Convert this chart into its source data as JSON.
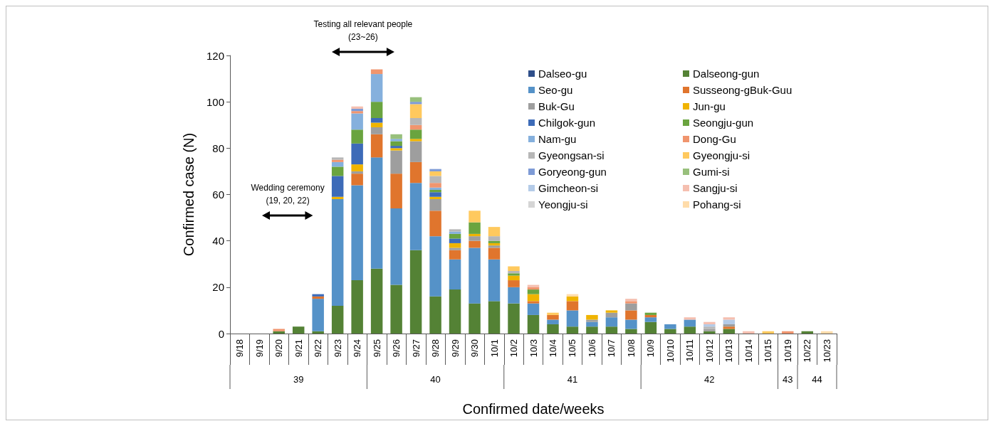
{
  "chart_data": {
    "type": "bar",
    "stacked": true,
    "xlabel": "Confirmed date/weeks",
    "ylabel": "Confirmed case (N)",
    "categories": [
      "9/18",
      "9/19",
      "9/20",
      "9/21",
      "9/22",
      "9/23",
      "9/24",
      "9/25",
      "9/26",
      "9/27",
      "9/28",
      "9/29",
      "9/30",
      "10/1",
      "10/2",
      "10/3",
      "10/4",
      "10/5",
      "10/6",
      "10/7",
      "10/8",
      "10/9",
      "10/10",
      "10/11",
      "10/12",
      "10/13",
      "10/14",
      "10/15",
      "10/19",
      "10/22",
      "10/23"
    ],
    "ylim": [
      0,
      120
    ],
    "yticks": [
      0,
      20,
      40,
      60,
      80,
      100,
      120
    ],
    "grid": false,
    "legend": "top right",
    "series": [
      {
        "name": "Dalseo-gu",
        "color": "#2f4f8a",
        "values": [
          null,
          null,
          null,
          null,
          null,
          null,
          null,
          null,
          null,
          null,
          null,
          null,
          null,
          null,
          null,
          null,
          null,
          null,
          null,
          null,
          null,
          null,
          null,
          null,
          null,
          null,
          null,
          null,
          null,
          null,
          null
        ]
      },
      {
        "name": "Dalseong-gun",
        "color": "#548235",
        "values": [
          null,
          null,
          1,
          3,
          1,
          12,
          23,
          28,
          21,
          36,
          16,
          19,
          13,
          14,
          13,
          8,
          4,
          3,
          3,
          3,
          2,
          5,
          2,
          3,
          1,
          2,
          null,
          null,
          null,
          1,
          null
        ]
      },
      {
        "name": "Seo-gu",
        "color": "#5592c8",
        "values": [
          null,
          null,
          null,
          null,
          14,
          46,
          41,
          48,
          33,
          29,
          26,
          13,
          24,
          18,
          7,
          5,
          2,
          7,
          2,
          4,
          4,
          2,
          2,
          3,
          null,
          null,
          null,
          null,
          null,
          null,
          null
        ]
      },
      {
        "name": "Susseong-gBuk-Guu",
        "color": "#e0752d",
        "values": [
          null,
          null,
          null,
          null,
          1,
          null,
          5,
          10,
          15,
          9,
          11,
          4,
          3,
          5,
          3,
          1,
          2,
          4,
          null,
          null,
          4,
          1,
          null,
          null,
          null,
          1,
          null,
          null,
          null,
          null,
          null
        ]
      },
      {
        "name": "Buk-Gu",
        "color": "#9e9e9e",
        "values": [
          null,
          null,
          null,
          null,
          null,
          null,
          1,
          3,
          10,
          9,
          5,
          1,
          2,
          1,
          null,
          null,
          null,
          null,
          1,
          2,
          3,
          null,
          null,
          null,
          1,
          1,
          null,
          null,
          null,
          null,
          null
        ]
      },
      {
        "name": "Jun-gu",
        "color": "#f0b400",
        "values": [
          null,
          null,
          null,
          null,
          null,
          1,
          3,
          2,
          1,
          1,
          1,
          2,
          1,
          1,
          2,
          3,
          null,
          2,
          2,
          1,
          null,
          null,
          null,
          null,
          null,
          null,
          null,
          null,
          null,
          null,
          null
        ]
      },
      {
        "name": "Chilgok-gun",
        "color": "#3d6bb8",
        "values": [
          null,
          null,
          null,
          null,
          1,
          9,
          9,
          2,
          1,
          null,
          2,
          2,
          null,
          null,
          null,
          null,
          null,
          null,
          null,
          null,
          null,
          null,
          null,
          null,
          null,
          null,
          null,
          null,
          null,
          null,
          null
        ]
      },
      {
        "name": "Seongju-gun",
        "color": "#6aa43f",
        "values": [
          null,
          null,
          null,
          null,
          null,
          4,
          6,
          7,
          2,
          4,
          1,
          2,
          5,
          1,
          1,
          2,
          null,
          null,
          null,
          null,
          null,
          1,
          null,
          null,
          null,
          null,
          null,
          null,
          null,
          null,
          null
        ]
      },
      {
        "name": "Nam-gu",
        "color": "#85b0dd",
        "values": [
          null,
          null,
          null,
          null,
          null,
          2,
          7,
          12,
          1,
          null,
          1,
          1,
          null,
          null,
          null,
          null,
          null,
          null,
          null,
          null,
          null,
          null,
          null,
          null,
          null,
          null,
          null,
          null,
          null,
          null,
          null
        ]
      },
      {
        "name": "Dong-Gu",
        "color": "#f0956e",
        "values": [
          null,
          null,
          1,
          null,
          null,
          1,
          1,
          2,
          null,
          2,
          2,
          null,
          null,
          null,
          null,
          1,
          null,
          null,
          null,
          null,
          1,
          null,
          null,
          null,
          null,
          null,
          null,
          null,
          1,
          null,
          null
        ]
      },
      {
        "name": "Gyeongsan-si",
        "color": "#b7b7b7",
        "values": [
          null,
          null,
          null,
          null,
          null,
          1,
          null,
          null,
          null,
          3,
          3,
          1,
          null,
          2,
          1,
          null,
          null,
          null,
          null,
          null,
          null,
          null,
          null,
          null,
          1,
          null,
          null,
          null,
          null,
          null,
          null
        ]
      },
      {
        "name": "Gyeongju-si",
        "color": "#ffc95e",
        "values": [
          null,
          null,
          null,
          null,
          null,
          null,
          null,
          null,
          null,
          6,
          2,
          null,
          5,
          4,
          2,
          null,
          1,
          null,
          null,
          null,
          null,
          null,
          null,
          null,
          null,
          null,
          null,
          1,
          null,
          null,
          null
        ]
      },
      {
        "name": "Goryeong-gun",
        "color": "#7e9bd6",
        "values": [
          null,
          null,
          null,
          null,
          null,
          null,
          1,
          null,
          null,
          1,
          1,
          null,
          null,
          null,
          null,
          null,
          null,
          null,
          null,
          null,
          null,
          null,
          null,
          null,
          null,
          null,
          null,
          null,
          null,
          null,
          null
        ]
      },
      {
        "name": "Gumi-si",
        "color": "#98c07c",
        "values": [
          null,
          null,
          null,
          null,
          null,
          null,
          null,
          null,
          2,
          2,
          null,
          null,
          null,
          null,
          null,
          null,
          null,
          null,
          null,
          null,
          null,
          null,
          null,
          null,
          null,
          null,
          null,
          null,
          null,
          null,
          null
        ]
      },
      {
        "name": "Gimcheon-si",
        "color": "#b4cbe8",
        "values": [
          null,
          null,
          null,
          null,
          null,
          null,
          null,
          null,
          null,
          null,
          null,
          null,
          null,
          null,
          null,
          null,
          null,
          null,
          null,
          null,
          null,
          null,
          null,
          null,
          1,
          2,
          null,
          null,
          null,
          null,
          null
        ]
      },
      {
        "name": "Sangju-si",
        "color": "#f5bfb0",
        "values": [
          null,
          null,
          null,
          null,
          null,
          null,
          1,
          null,
          null,
          null,
          null,
          null,
          null,
          null,
          null,
          1,
          null,
          null,
          null,
          null,
          1,
          null,
          null,
          1,
          1,
          1,
          1,
          null,
          null,
          null,
          null
        ]
      },
      {
        "name": "Yeongju-si",
        "color": "#d5d5d5",
        "values": [
          null,
          null,
          null,
          null,
          null,
          null,
          null,
          null,
          null,
          null,
          null,
          null,
          null,
          null,
          null,
          null,
          null,
          null,
          null,
          null,
          null,
          null,
          null,
          null,
          null,
          null,
          null,
          null,
          null,
          null,
          null
        ]
      },
      {
        "name": "Pohang-si",
        "color": "#ffdcaa",
        "values": [
          null,
          null,
          null,
          null,
          null,
          null,
          null,
          null,
          null,
          null,
          null,
          null,
          null,
          null,
          null,
          null,
          null,
          1,
          null,
          null,
          null,
          null,
          null,
          null,
          null,
          null,
          null,
          null,
          null,
          null,
          1
        ]
      }
    ],
    "annotations": [
      "Wedding ceremony\n(19, 20, 22)",
      "Testing all relevant people\n(23~26)",
      "39",
      "40",
      "41",
      "42",
      "43",
      "44"
    ]
  }
}
